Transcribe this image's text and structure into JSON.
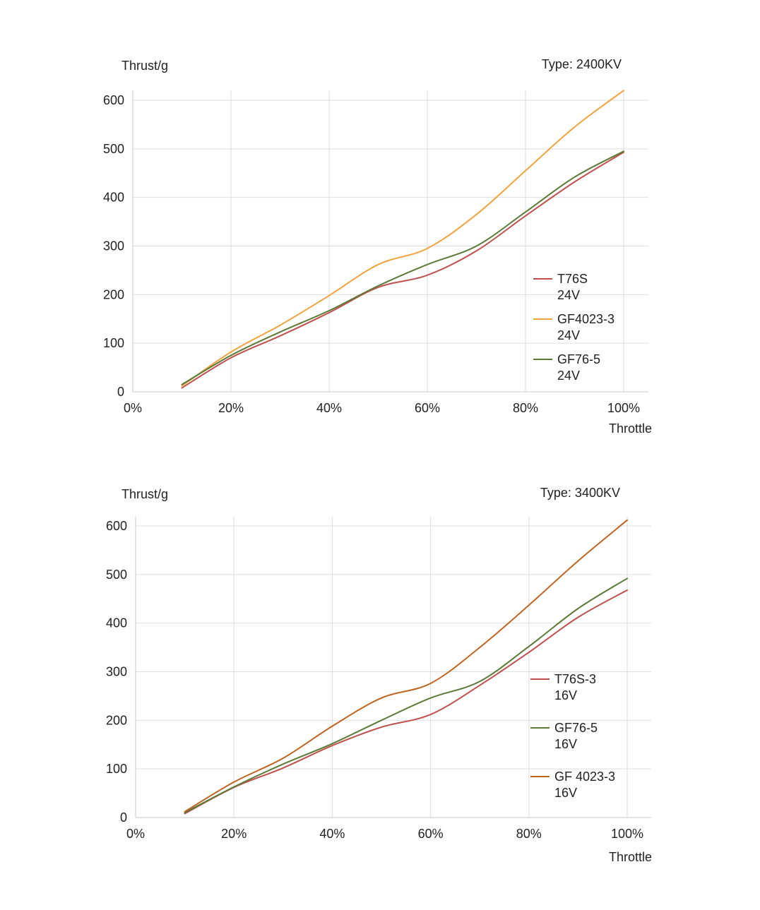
{
  "chart_data": [
    {
      "type": "line",
      "title": "Type: 2400KV",
      "ylabel": "Thrust/g",
      "xlabel": "Throttle",
      "x": [
        10,
        20,
        30,
        40,
        50,
        60,
        70,
        80,
        90,
        100
      ],
      "xlim": [
        0,
        100
      ],
      "ylim": [
        0,
        620
      ],
      "xticks": [
        "0%",
        "20%",
        "40%",
        "60%",
        "80%",
        "100%"
      ],
      "yticks": [
        "0",
        "100",
        "200",
        "300",
        "400",
        "500",
        "600"
      ],
      "grid": true,
      "legend_position": "right",
      "series": [
        {
          "name": "T76S",
          "name2": "24V",
          "color": "#c0504d",
          "values": [
            8,
            70,
            115,
            163,
            215,
            240,
            290,
            362,
            432,
            493
          ]
        },
        {
          "name": "GF4023-3",
          "name2": "24V",
          "color": "#f4a23c",
          "values": [
            12,
            82,
            137,
            198,
            262,
            295,
            365,
            455,
            545,
            620
          ]
        },
        {
          "name": "GF76-5",
          "name2": "24V",
          "color": "#5a7a35",
          "values": [
            15,
            75,
            123,
            167,
            218,
            262,
            300,
            370,
            442,
            495
          ]
        }
      ]
    },
    {
      "type": "line",
      "title": "Type: 3400KV",
      "ylabel": "Thrust/g",
      "xlabel": "Throttle",
      "x": [
        10,
        20,
        30,
        40,
        50,
        60,
        70,
        80,
        90,
        100
      ],
      "xlim": [
        0,
        100
      ],
      "ylim": [
        0,
        612
      ],
      "xticks": [
        "0%",
        "20%",
        "40%",
        "60%",
        "80%",
        "100%"
      ],
      "yticks": [
        "0",
        "100",
        "200",
        "300",
        "400",
        "500",
        "600"
      ],
      "grid": true,
      "legend_position": "right",
      "series": [
        {
          "name": "T76S-3",
          "name2": "16V",
          "color": "#c0504d",
          "values": [
            8,
            62,
            102,
            148,
            186,
            212,
            272,
            340,
            412,
            468
          ]
        },
        {
          "name": "GF76-5",
          "name2": "16V",
          "color": "#5a7a35",
          "values": [
            10,
            63,
            110,
            152,
            200,
            246,
            280,
            352,
            430,
            492
          ]
        },
        {
          "name": "GF 4023-3",
          "name2": "16V",
          "color": "#c0641e",
          "values": [
            12,
            73,
            122,
            188,
            246,
            276,
            350,
            437,
            528,
            612
          ]
        }
      ]
    }
  ]
}
